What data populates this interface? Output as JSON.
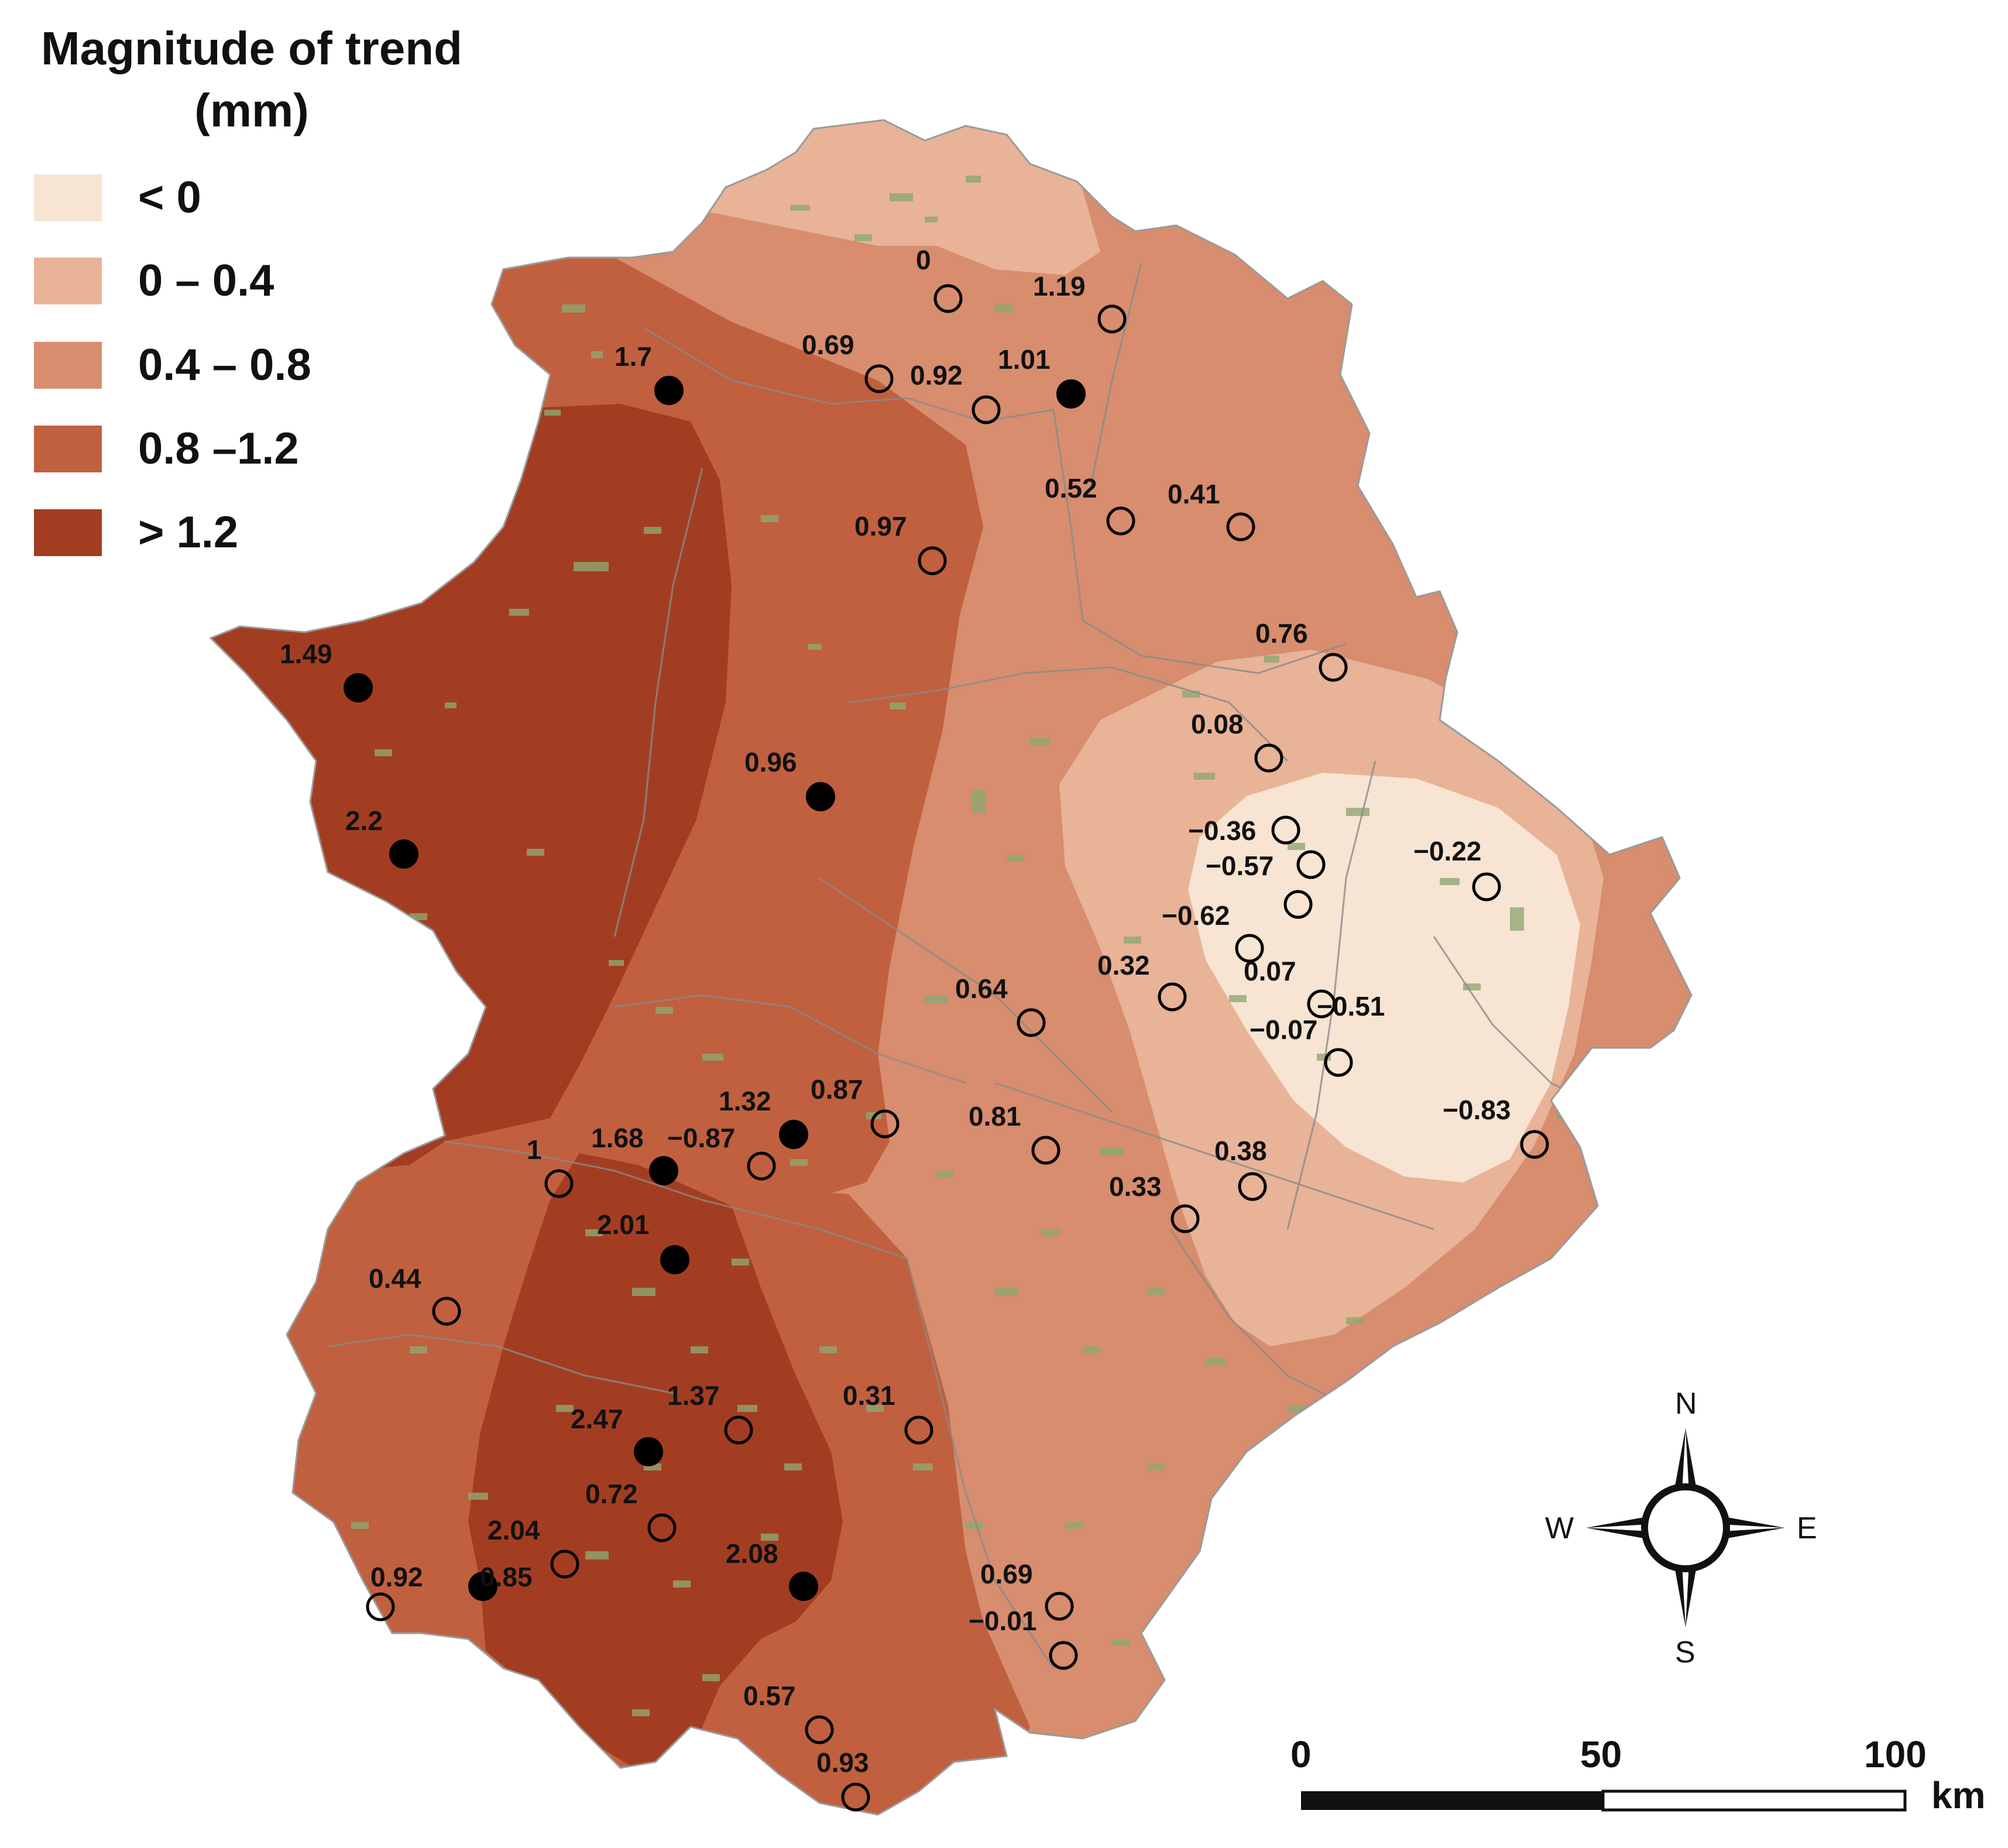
{
  "legend": {
    "title_line1": "Magnitude of trend",
    "title_line2": "(mm)",
    "classes": [
      {
        "label": "< 0",
        "color": "#f7e4d2"
      },
      {
        "label": "0 – 0.4",
        "color": "#e8b397"
      },
      {
        "label": "0.4 – 0.8",
        "color": "#d78d6e"
      },
      {
        "label": "0.8 –1.2",
        "color": "#c0603f"
      },
      {
        "label": "> 1.2",
        "color": "#a33d22"
      }
    ]
  },
  "stations": [
    {
      "value": "0",
      "significant": false
    },
    {
      "value": "1.19",
      "significant": false
    },
    {
      "value": "0.69",
      "significant": false
    },
    {
      "value": "0.92",
      "significant": false
    },
    {
      "value": "1.01",
      "significant": true
    },
    {
      "value": "1.7",
      "significant": true
    },
    {
      "value": "0.52",
      "significant": false
    },
    {
      "value": "0.41",
      "significant": false
    },
    {
      "value": "0.97",
      "significant": false
    },
    {
      "value": "0.76",
      "significant": false
    },
    {
      "value": "1.49",
      "significant": true
    },
    {
      "value": "0.08",
      "significant": false
    },
    {
      "value": "0.96",
      "significant": true
    },
    {
      "value": "−0.36",
      "significant": false
    },
    {
      "value": "−0.57",
      "significant": false
    },
    {
      "value": "−0.22",
      "significant": false
    },
    {
      "value": "2.2",
      "significant": true
    },
    {
      "value": "−0.62",
      "significant": false
    },
    {
      "value": "0.07",
      "significant": false
    },
    {
      "value": "0.32",
      "significant": false
    },
    {
      "value": "−0.51",
      "significant": false
    },
    {
      "value": "−0.07",
      "significant": false
    },
    {
      "value": "0.64",
      "significant": false
    },
    {
      "value": "−0.83",
      "significant": false
    },
    {
      "value": "1.32",
      "significant": true
    },
    {
      "value": "0.87",
      "significant": false
    },
    {
      "value": "0.81",
      "significant": false
    },
    {
      "value": "1.68",
      "significant": true
    },
    {
      "value": "−0.87",
      "significant": false
    },
    {
      "value": "1",
      "significant": false
    },
    {
      "value": "0.38",
      "significant": false
    },
    {
      "value": "0.33",
      "significant": false
    },
    {
      "value": "2.01",
      "significant": true
    },
    {
      "value": "0.44",
      "significant": false
    },
    {
      "value": "1.37",
      "significant": false
    },
    {
      "value": "0.31",
      "significant": false
    },
    {
      "value": "2.47",
      "significant": true
    },
    {
      "value": "0.72",
      "significant": false
    },
    {
      "value": "2.04",
      "significant": false
    },
    {
      "value": "0.85",
      "significant": true
    },
    {
      "value": "2.08",
      "significant": true
    },
    {
      "value": "0.92",
      "significant": false
    },
    {
      "value": "0.69",
      "significant": false
    },
    {
      "value": "−0.01",
      "significant": false
    },
    {
      "value": "0.57",
      "significant": false
    },
    {
      "value": "0.93",
      "significant": false
    }
  ],
  "compass": {
    "n": "N",
    "s": "S",
    "e": "E",
    "w": "W"
  },
  "scale_bar": {
    "ticks": [
      "0",
      "50",
      "100"
    ],
    "unit": "km"
  }
}
